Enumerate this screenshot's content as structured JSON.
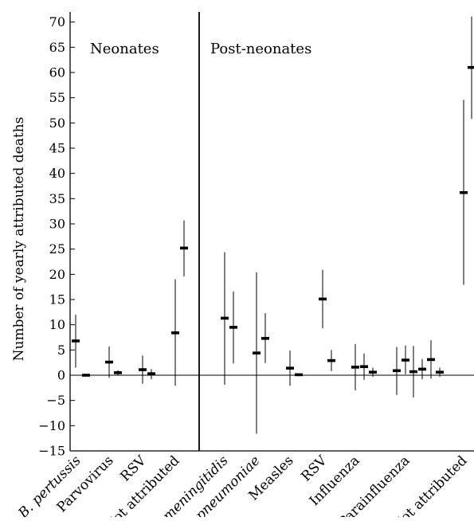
{
  "chart_data": {
    "type": "scatter",
    "ylabel": "Number of yearly attributed deaths",
    "ylim": [
      -15,
      72
    ],
    "yticks": [
      -15,
      -10,
      -5,
      0,
      5,
      10,
      15,
      20,
      25,
      30,
      35,
      40,
      45,
      50,
      55,
      60,
      65,
      70
    ],
    "group_labels": [
      "Neonates",
      "Post-neonates"
    ],
    "categories": [
      {
        "label": "B. pertussis",
        "italic": true
      },
      {
        "label": "Parvovirus",
        "italic": false
      },
      {
        "label": "RSV",
        "italic": false
      },
      {
        "label": "Not attributed",
        "italic": false
      },
      {
        "label": "N. meningitidis",
        "italic": true
      },
      {
        "label": "S. pneumoniae",
        "italic": true
      },
      {
        "label": "Measles",
        "italic": false
      },
      {
        "label": "RSV",
        "italic": false
      },
      {
        "label": "Influenza",
        "italic": false
      },
      {
        "label": "Parainfluenza",
        "italic": false
      },
      {
        "label": "Not attributed",
        "italic": false
      }
    ],
    "points": [
      {
        "group": "Neonates",
        "category": "B. pertussis",
        "y": 6.8,
        "lo": 1.5,
        "hi": 12.0
      },
      {
        "group": "Neonates",
        "category": "B. pertussis",
        "y": 0.0,
        "lo": 0.0,
        "hi": 0.0
      },
      {
        "group": "Neonates",
        "category": "Parvovirus",
        "y": 2.6,
        "lo": -0.5,
        "hi": 5.7
      },
      {
        "group": "Neonates",
        "category": "Parvovirus",
        "y": 0.5,
        "lo": 0.0,
        "hi": 1.0
      },
      {
        "group": "Neonates",
        "category": "RSV",
        "y": 1.1,
        "lo": -1.7,
        "hi": 3.9
      },
      {
        "group": "Neonates",
        "category": "RSV",
        "y": 0.3,
        "lo": -0.8,
        "hi": 1.2
      },
      {
        "group": "Neonates",
        "category": "Not attributed",
        "y": 8.4,
        "lo": -2.1,
        "hi": 19.0
      },
      {
        "group": "Neonates",
        "category": "Not attributed",
        "y": 25.2,
        "lo": 19.6,
        "hi": 30.7
      },
      {
        "group": "Post-neonates",
        "category": "N. meningitidis",
        "y": 11.3,
        "lo": -1.9,
        "hi": 24.4
      },
      {
        "group": "Post-neonates",
        "category": "N. meningitidis",
        "y": 9.5,
        "lo": 2.3,
        "hi": 16.6
      },
      {
        "group": "Post-neonates",
        "category": "S. pneumoniae",
        "y": 4.4,
        "lo": -11.6,
        "hi": 20.4
      },
      {
        "group": "Post-neonates",
        "category": "S. pneumoniae",
        "y": 7.3,
        "lo": 2.4,
        "hi": 12.3
      },
      {
        "group": "Post-neonates",
        "category": "Measles",
        "y": 1.4,
        "lo": -2.1,
        "hi": 4.9
      },
      {
        "group": "Post-neonates",
        "category": "Measles",
        "y": 0.1,
        "lo": -0.2,
        "hi": 0.4
      },
      {
        "group": "Post-neonates",
        "category": "RSV",
        "y": 15.1,
        "lo": 9.3,
        "hi": 20.9
      },
      {
        "group": "Post-neonates",
        "category": "RSV",
        "y": 2.9,
        "lo": 0.8,
        "hi": 5.0
      },
      {
        "group": "Post-neonates",
        "category": "Influenza",
        "y": 1.6,
        "lo": -3.0,
        "hi": 6.2
      },
      {
        "group": "Post-neonates",
        "category": "Influenza",
        "y": 1.7,
        "lo": -0.9,
        "hi": 4.3
      },
      {
        "group": "Post-neonates",
        "category": "Influenza",
        "y": 0.6,
        "lo": -0.3,
        "hi": 1.5
      },
      {
        "group": "Post-neonates",
        "category": "Parainfluenza",
        "y": 0.9,
        "lo": -3.9,
        "hi": 5.6
      },
      {
        "group": "Post-neonates",
        "category": "Parainfluenza",
        "y": 3.0,
        "lo": 0.2,
        "hi": 5.9
      },
      {
        "group": "Post-neonates",
        "category": "Parainfluenza",
        "y": 0.7,
        "lo": -4.4,
        "hi": 5.8
      },
      {
        "group": "Post-neonates",
        "category": "Parainfluenza",
        "y": 1.2,
        "lo": -0.8,
        "hi": 3.2
      },
      {
        "group": "Post-neonates",
        "category": "Parainfluenza",
        "y": 3.1,
        "lo": -0.7,
        "hi": 6.9
      },
      {
        "group": "Post-neonates",
        "category": "Parainfluenza",
        "y": 0.6,
        "lo": -0.3,
        "hi": 1.5
      },
      {
        "group": "Post-neonates",
        "category": "Not attributed",
        "y": 36.2,
        "lo": 17.9,
        "hi": 54.6
      },
      {
        "group": "Post-neonates",
        "category": "Not attributed",
        "y": 61.0,
        "lo": 50.8,
        "hi": 71.1
      }
    ],
    "grid": false,
    "legend": "none"
  }
}
